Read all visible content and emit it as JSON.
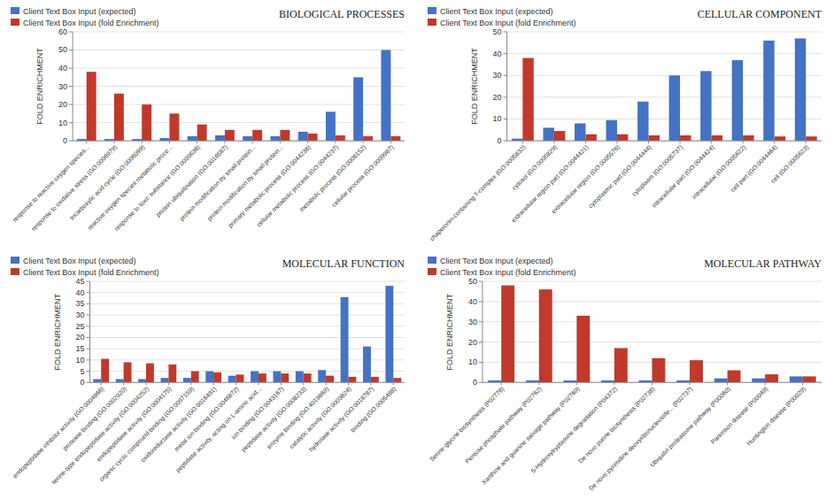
{
  "chart_data": [
    {
      "type": "bar",
      "title": "BIOLOGICAL PROCESSES",
      "ylabel": "FOLD ENRICHMENT",
      "categories": [
        "response to reactive oxygen species...",
        "response to oxidative stress (GO:0006979)",
        "tricarboxylic acid cycle (GO:0006099)",
        "reactive oxygen species metabolic proce...",
        "response to toxic substance (GO:0009636)",
        "protein ubiquitination (GO:0016567)",
        "protein modification by small protein...",
        "protein modification by small protein...",
        "primary metabolic process (GO:0044238)",
        "cellular metabolic process (GO:0044237)",
        "metabolic process (GO:0008152)",
        "cellular process (GO:0009987)"
      ],
      "series": [
        {
          "name": "Client Text Box Input (expected)",
          "color": "#4472C4",
          "values": [
            1,
            1,
            1,
            1.5,
            2.5,
            3,
            2.5,
            2.5,
            5,
            16,
            35,
            50
          ]
        },
        {
          "name": "Client Text Box Input (fold Enrichment)",
          "color": "#C0392B",
          "values": [
            38,
            26,
            20,
            15,
            9,
            6,
            6,
            6,
            4,
            3,
            2.5,
            2.5
          ]
        }
      ],
      "ylim": [
        0,
        60
      ],
      "yticks": [
        0,
        10,
        20,
        30,
        40,
        50,
        60
      ],
      "grid": true,
      "legend": "upper-left"
    },
    {
      "type": "bar",
      "title": "CELLULAR COMPONENT",
      "ylabel": "FOLD ENRICHMENT",
      "categories": [
        "chaperonin-containing T-complex (GO:0005832)",
        "cytosol (GO:0005829)",
        "extracellular region part (GO:0044421)",
        "extracellular region (GO:0005576)",
        "cytoplasmic part (GO:0044444)",
        "cytoplasm (GO:0005737)",
        "intracellular part (GO:0044424)",
        "intracellular (GO:0005622)",
        "cell part (GO:0044464)",
        "cell (GO:0005623)"
      ],
      "series": [
        {
          "name": "Client Text Box Input (expected)",
          "color": "#4472C4",
          "values": [
            1,
            6,
            8,
            9.5,
            18,
            30,
            32,
            37,
            46,
            47
          ]
        },
        {
          "name": "Client Text Box Input (fold Enrichment)",
          "color": "#C0392B",
          "values": [
            38,
            4.5,
            3,
            3,
            2.5,
            2.5,
            2.5,
            2.5,
            2,
            2
          ]
        }
      ],
      "ylim": [
        0,
        50
      ],
      "yticks": [
        0,
        10,
        20,
        30,
        40,
        50
      ],
      "grid": true,
      "legend": "upper-left"
    },
    {
      "type": "bar",
      "title": "MOLECULAR FUNCTION",
      "ylabel": "FOLD ENRICHMENT",
      "categories": [
        "endopeptidase inhibitor activity (GO:0004866)",
        "protease binding (GO:0002020)",
        "serine-type endopeptidase activity (GO:0004252)",
        "endopeptidase activity (GO:0004175)",
        "organic cyclic compound binding (GO:0097159)",
        "oxidoreductase activity (GO:0016491)",
        "metal ion binding (GO:0046872)",
        "peptidase activity, acting on L-amino acid...",
        "ion binding (GO:0043167)",
        "peptidase activity (GO:0008233)",
        "enzyme binding (GO:4019869)",
        "catalytic activity (GO:0003824)",
        "hydrolase activity (GO:0016787)",
        "binding (GO:0005488)"
      ],
      "series": [
        {
          "name": "Client Text Box Input (expected)",
          "color": "#4472C4",
          "values": [
            1.5,
            1.5,
            1.5,
            2,
            2,
            5,
            3,
            5,
            5,
            5,
            5.5,
            38,
            16,
            43
          ]
        },
        {
          "name": "Client Text Box Input (fold Enrichment)",
          "color": "#C0392B",
          "values": [
            10.5,
            9,
            8.5,
            8,
            5,
            4.5,
            3.5,
            4,
            4,
            4,
            3,
            2.5,
            2.5,
            2
          ]
        }
      ],
      "ylim": [
        0,
        45
      ],
      "yticks": [
        0,
        5,
        10,
        15,
        20,
        25,
        30,
        35,
        40,
        45
      ],
      "grid": true,
      "legend": "upper-left"
    },
    {
      "type": "bar",
      "title": "MOLECULAR PATHWAY",
      "ylabel": "FOLD ENRICHMENT",
      "categories": [
        "Serine-glycine biosynthesis (P02776)",
        "Pentose phosphate pathway (P02762)",
        "Xanthine and guanine salvage pathway (P02769)",
        "5-Hydroxytryptamine degradation (P04372)",
        "De novo purine biosynthesis (P02738)",
        "De novo pyrimidine deoxyribonucleoside... (P02737)",
        "Ubiquitin proteasome pathway (P00060)",
        "Parkinson disease (P00049)",
        "Huntington disease (P00029)"
      ],
      "series": [
        {
          "name": "Client Text Box Input (expected)",
          "color": "#4472C4",
          "values": [
            1,
            1,
            1,
            1,
            1,
            1,
            2,
            2,
            3
          ]
        },
        {
          "name": "Client Text Box Input (fold Enrichment)",
          "color": "#C0392B",
          "values": [
            48,
            46,
            33,
            17,
            12,
            11,
            6,
            4,
            3
          ]
        }
      ],
      "ylim": [
        0,
        50
      ],
      "yticks": [
        0,
        10,
        20,
        30,
        40,
        50
      ],
      "grid": true,
      "legend": "upper-left"
    }
  ]
}
